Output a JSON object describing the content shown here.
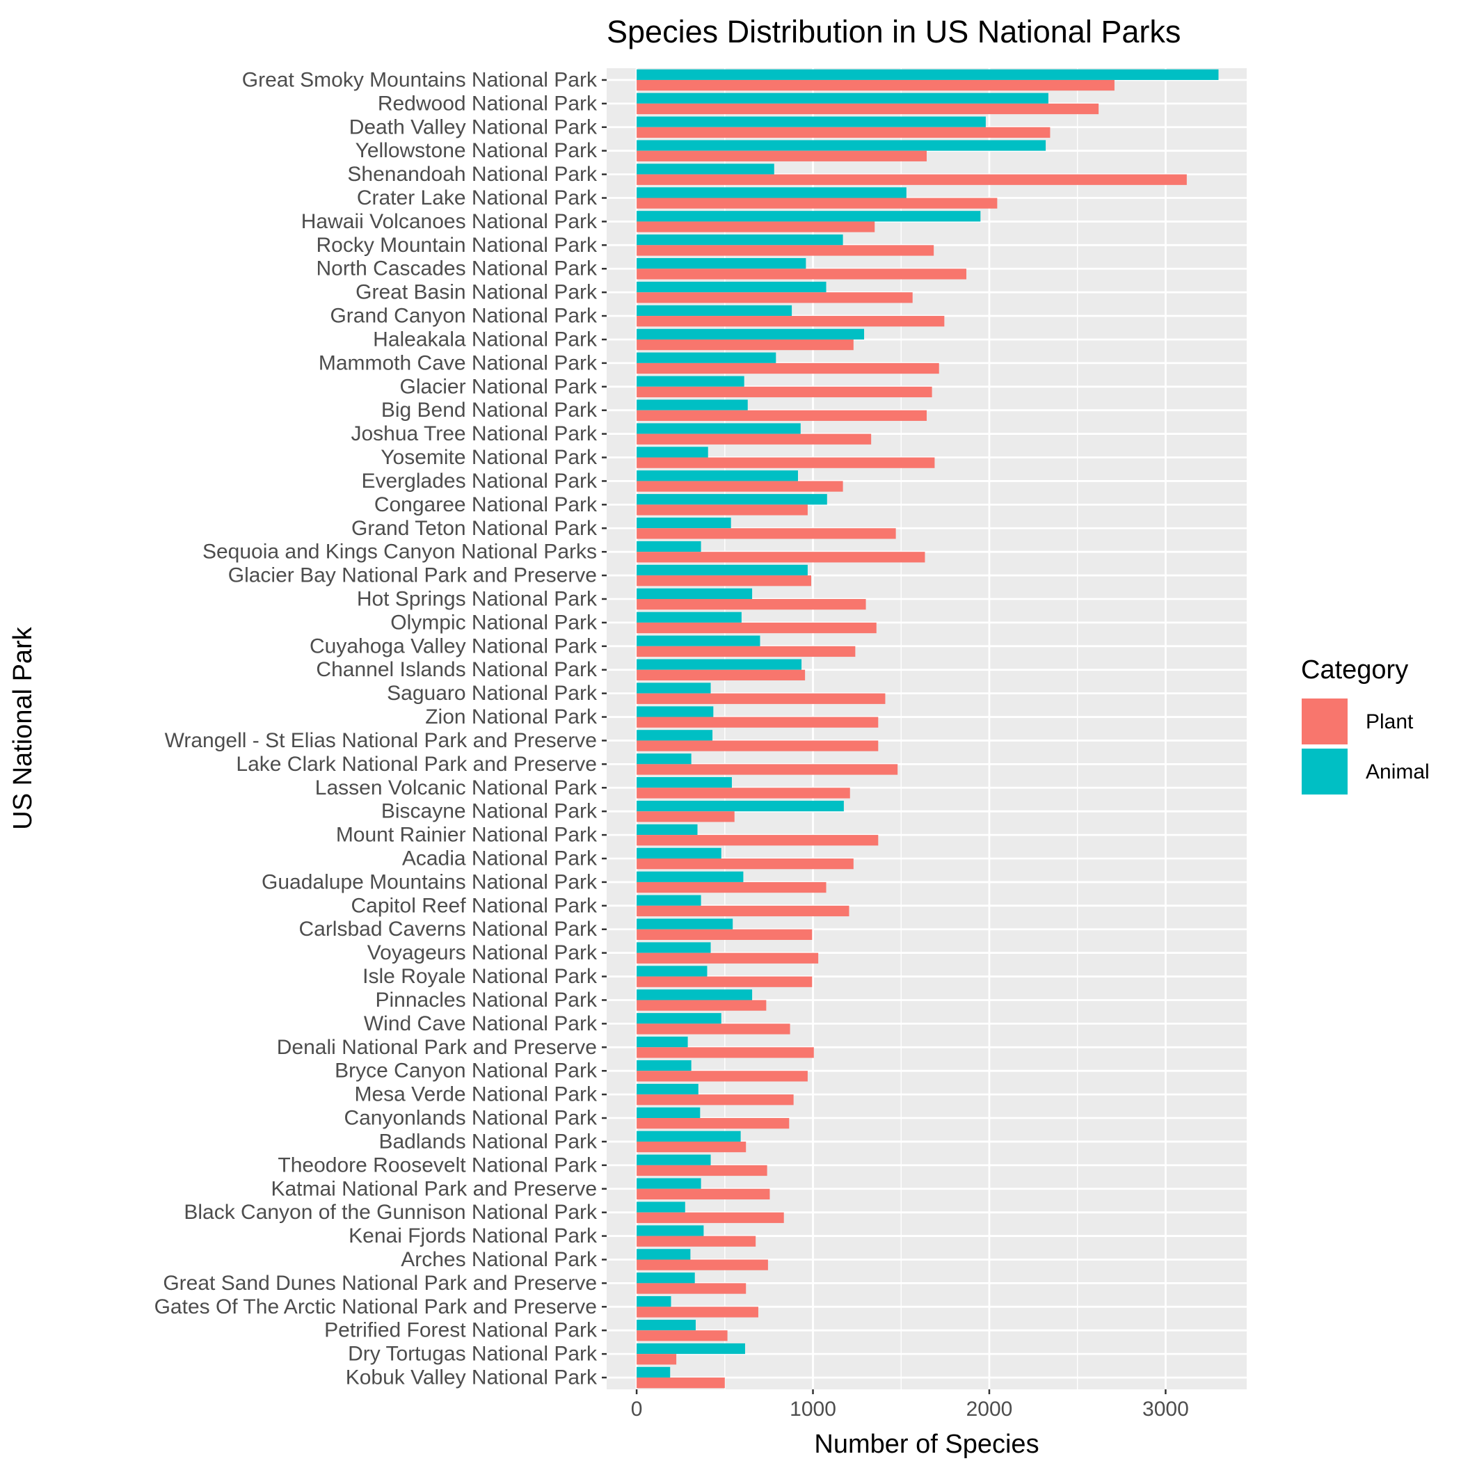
{
  "chart_data": {
    "type": "bar",
    "orientation": "horizontal",
    "title": "Species Distribution in US National Parks",
    "xlabel": "Number of Species",
    "ylabel": "US National Park",
    "xlim": [
      -170,
      3460
    ],
    "xticks": [
      0,
      1000,
      2000,
      3000
    ],
    "grid": true,
    "legend_title": "Category",
    "legend_position": "right",
    "categories": [
      "Great Smoky Mountains National Park",
      "Redwood National Park",
      "Death Valley National Park",
      "Yellowstone National Park",
      "Shenandoah National Park",
      "Crater Lake National Park",
      "Hawaii Volcanoes National Park",
      "Rocky Mountain National Park",
      "North Cascades National Park",
      "Great Basin National Park",
      "Grand Canyon National Park",
      "Haleakala National Park",
      "Mammoth Cave National Park",
      "Glacier National Park",
      "Big Bend National Park",
      "Joshua Tree National Park",
      "Yosemite National Park",
      "Everglades National Park",
      "Congaree National Park",
      "Grand Teton National Park",
      "Sequoia and Kings Canyon National Parks",
      "Glacier Bay National Park and Preserve",
      "Hot Springs National Park",
      "Olympic National Park",
      "Cuyahoga Valley National Park",
      "Channel Islands National Park",
      "Saguaro National Park",
      "Zion National Park",
      "Wrangell - St Elias National Park and Preserve",
      "Lake Clark National Park and Preserve",
      "Lassen Volcanic National Park",
      "Biscayne National Park",
      "Mount Rainier National Park",
      "Acadia National Park",
      "Guadalupe Mountains National Park",
      "Capitol Reef National Park",
      "Carlsbad Caverns National Park",
      "Voyageurs National Park",
      "Isle Royale National Park",
      "Pinnacles National Park",
      "Wind Cave National Park",
      "Denali National Park and Preserve",
      "Bryce Canyon National Park",
      "Mesa Verde National Park",
      "Canyonlands National Park",
      "Badlands National Park",
      "Theodore Roosevelt National Park",
      "Katmai National Park and Preserve",
      "Black Canyon of the Gunnison National Park",
      "Kenai Fjords National Park",
      "Arches National Park",
      "Great Sand Dunes National Park and Preserve",
      "Gates Of The Arctic National Park and Preserve",
      "Petrified Forest National Park",
      "Dry Tortugas National Park",
      "Kobuk Valley National Park"
    ],
    "series": [
      {
        "name": "Plant",
        "color": "#F8766D",
        "values": [
          2710,
          2620,
          2345,
          1645,
          3120,
          2045,
          1350,
          1685,
          1870,
          1565,
          1745,
          1230,
          1715,
          1675,
          1645,
          1330,
          1690,
          1170,
          970,
          1470,
          1635,
          990,
          1300,
          1360,
          1240,
          955,
          1410,
          1370,
          1370,
          1480,
          1210,
          555,
          1370,
          1230,
          1075,
          1205,
          995,
          1030,
          995,
          735,
          870,
          1005,
          970,
          890,
          865,
          620,
          740,
          755,
          835,
          675,
          745,
          620,
          690,
          515,
          225,
          500
        ]
      },
      {
        "name": "Animal",
        "color": "#00BFC4",
        "values": [
          3300,
          2335,
          1980,
          2320,
          780,
          1530,
          1950,
          1170,
          960,
          1075,
          880,
          1290,
          790,
          610,
          630,
          930,
          405,
          915,
          1080,
          535,
          365,
          970,
          655,
          595,
          700,
          935,
          420,
          435,
          430,
          310,
          540,
          1175,
          345,
          480,
          605,
          365,
          545,
          420,
          400,
          655,
          480,
          290,
          310,
          350,
          360,
          590,
          420,
          365,
          275,
          380,
          305,
          330,
          195,
          335,
          615,
          190
        ]
      }
    ]
  }
}
